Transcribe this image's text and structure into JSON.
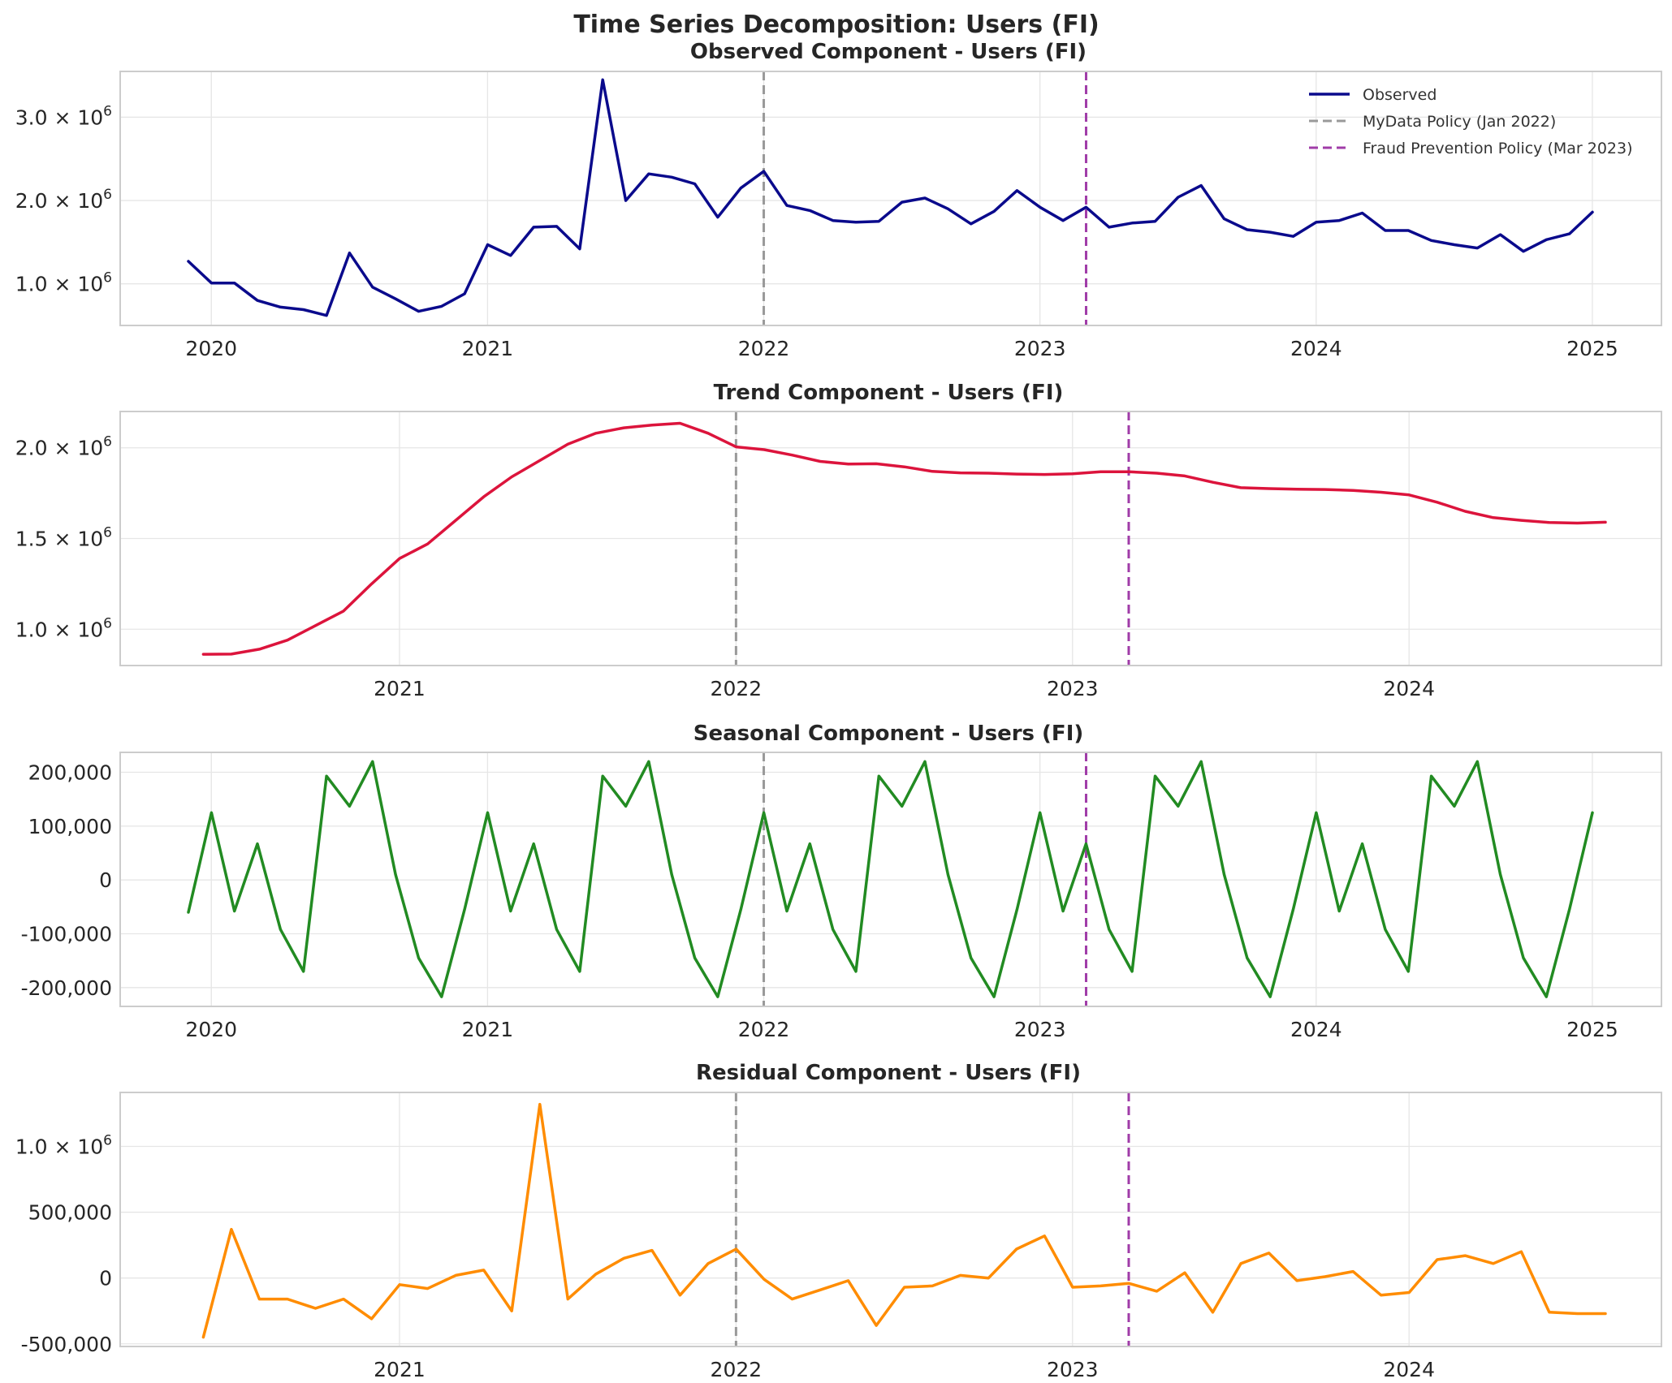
{
  "figure_title": "Time Series Decomposition: Users (FI)",
  "colors": {
    "observed": "#0a0a8c",
    "trend": "#dc143c",
    "seasonal": "#228b22",
    "residual": "#ff8c00",
    "mydata_line": "#999999",
    "fraud_line": "#a03ca8"
  },
  "policy_markers": [
    {
      "label": "MyData Policy (Jan 2022)",
      "date": 2022.0,
      "color": "#999999"
    },
    {
      "label": "Fraud Prevention Policy (Mar 2023)",
      "date": 2023.167,
      "color": "#a03ca8"
    }
  ],
  "legend": [
    "Observed",
    "MyData Policy (Jan 2022)",
    "Fraud Prevention Policy (Mar 2023)"
  ],
  "chart_data": [
    {
      "type": "line",
      "name": "observed",
      "title": "Observed Component - Users (FI)",
      "xlabel": "",
      "ylabel": "",
      "xlim": [
        2019.67,
        2025.25
      ],
      "ylim": [
        500000,
        3550000
      ],
      "xticks": [
        2020,
        2021,
        2022,
        2023,
        2024,
        2025
      ],
      "xtick_labels": [
        "2020",
        "2021",
        "2022",
        "2023",
        "2024",
        "2025"
      ],
      "yticks": [
        1000000,
        2000000,
        3000000
      ],
      "ytick_labels": [
        {
          "m": "1.0",
          "e": "6"
        },
        {
          "m": "2.0",
          "e": "6"
        },
        {
          "m": "3.0",
          "e": "6"
        }
      ],
      "ytick_style": "sci",
      "show_legend": true,
      "x_start": 2019.917,
      "x_step": 0.08333,
      "values": [
        1270000,
        1010000,
        1010000,
        800000,
        720000,
        690000,
        620000,
        1370000,
        960000,
        820000,
        670000,
        730000,
        880000,
        1470000,
        1340000,
        1680000,
        1690000,
        1420000,
        3450000,
        2000000,
        2320000,
        2280000,
        2200000,
        1800000,
        2150000,
        2350000,
        1940000,
        1880000,
        1760000,
        1740000,
        1750000,
        1980000,
        2030000,
        1900000,
        1720000,
        1870000,
        2120000,
        1920000,
        1760000,
        1920000,
        1680000,
        1730000,
        1750000,
        2040000,
        2180000,
        1780000,
        1650000,
        1620000,
        1570000,
        1740000,
        1760000,
        1850000,
        1640000,
        1640000,
        1520000,
        1470000,
        1430000,
        1590000,
        1390000,
        1530000,
        1600000,
        1860000
      ]
    },
    {
      "type": "line",
      "name": "trend",
      "title": "Trend Component - Users (FI)",
      "xlabel": "",
      "ylabel": "",
      "xlim": [
        2020.17,
        2024.75
      ],
      "ylim": [
        800000,
        2200000
      ],
      "xticks": [
        2021,
        2022,
        2023,
        2024
      ],
      "xtick_labels": [
        "2021",
        "2022",
        "2023",
        "2024"
      ],
      "yticks": [
        1000000,
        1500000,
        2000000
      ],
      "ytick_labels": [
        {
          "m": "1.0",
          "e": "6"
        },
        {
          "m": "1.5",
          "e": "6"
        },
        {
          "m": "2.0",
          "e": "6"
        }
      ],
      "ytick_style": "sci",
      "show_legend": false,
      "x_start": 2020.417,
      "x_step": 0.08333,
      "values": [
        862000,
        863000,
        890000,
        940000,
        1020000,
        1100000,
        1250000,
        1390000,
        1470000,
        1600000,
        1730000,
        1840000,
        1930000,
        2020000,
        2080000,
        2110000,
        2125000,
        2135000,
        2080000,
        2005000,
        1990000,
        1960000,
        1925000,
        1910000,
        1912000,
        1895000,
        1870000,
        1862000,
        1860000,
        1855000,
        1853000,
        1857000,
        1868000,
        1868000,
        1860000,
        1845000,
        1810000,
        1780000,
        1775000,
        1772000,
        1770000,
        1765000,
        1755000,
        1740000,
        1700000,
        1650000,
        1615000,
        1600000,
        1588000,
        1585000,
        1590000
      ]
    },
    {
      "type": "line",
      "name": "seasonal",
      "title": "Seasonal Component - Users (FI)",
      "xlabel": "",
      "ylabel": "",
      "xlim": [
        2019.67,
        2025.25
      ],
      "ylim": [
        -235000,
        237000
      ],
      "xticks": [
        2020,
        2021,
        2022,
        2023,
        2024,
        2025
      ],
      "xtick_labels": [
        "2020",
        "2021",
        "2022",
        "2023",
        "2024",
        "2025"
      ],
      "yticks": [
        -200000,
        -100000,
        0,
        100000,
        200000
      ],
      "ytick_labels": [
        "-200,000",
        "-100,000",
        "0",
        "100,000",
        "200,000"
      ],
      "ytick_style": "plain",
      "show_legend": false,
      "x_start": 2019.917,
      "x_step": 0.08333,
      "values": [
        -60000,
        125000,
        -58000,
        67000,
        -92000,
        -170000,
        193000,
        137000,
        220000,
        10000,
        -145000,
        -217000,
        -55000,
        125000,
        -58000,
        67000,
        -92000,
        -170000,
        193000,
        137000,
        220000,
        10000,
        -145000,
        -217000,
        -55000,
        125000,
        -58000,
        67000,
        -92000,
        -170000,
        193000,
        137000,
        220000,
        10000,
        -145000,
        -217000,
        -55000,
        125000,
        -58000,
        67000,
        -92000,
        -170000,
        193000,
        137000,
        220000,
        10000,
        -145000,
        -217000,
        -55000,
        125000,
        -58000,
        67000,
        -92000,
        -170000,
        193000,
        137000,
        220000,
        10000,
        -145000,
        -217000,
        -55000,
        125000
      ]
    },
    {
      "type": "line",
      "name": "residual",
      "title": "Residual Component - Users (FI)",
      "xlabel": "",
      "ylabel": "",
      "xlim": [
        2020.17,
        2024.75
      ],
      "ylim": [
        -520000,
        1410000
      ],
      "xticks": [
        2021,
        2022,
        2023,
        2024
      ],
      "xtick_labels": [
        "2021",
        "2022",
        "2023",
        "2024"
      ],
      "yticks": [
        -500000,
        0,
        500000,
        1000000
      ],
      "ytick_labels": [
        "-500,000",
        "0",
        "500,000",
        {
          "m": "1.0",
          "e": "6"
        }
      ],
      "ytick_style": "mixed",
      "show_legend": false,
      "x_start": 2020.417,
      "x_step": 0.08333,
      "values": [
        -450000,
        370000,
        -160000,
        -160000,
        -230000,
        -160000,
        -310000,
        -50000,
        -80000,
        20000,
        60000,
        -250000,
        1320000,
        -160000,
        30000,
        150000,
        210000,
        -130000,
        110000,
        220000,
        -10000,
        -160000,
        -90000,
        -20000,
        -360000,
        -70000,
        -60000,
        20000,
        0,
        220000,
        320000,
        -70000,
        -60000,
        -40000,
        -100000,
        40000,
        -260000,
        110000,
        190000,
        -20000,
        10000,
        50000,
        -130000,
        -110000,
        140000,
        170000,
        110000,
        200000,
        -260000,
        -270000,
        -270000
      ]
    }
  ]
}
